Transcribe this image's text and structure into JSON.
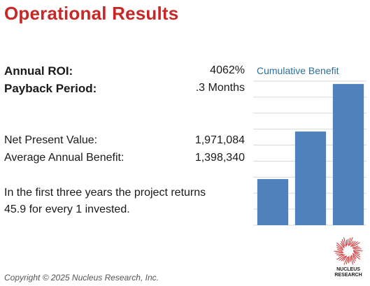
{
  "title": "Operational Results",
  "metrics": {
    "roi_label": "Annual ROI:",
    "roi_value": "4062%",
    "payback_label": "Payback Period:",
    "payback_value": ".3 Months",
    "npv_label": "Net Present Value:",
    "npv_value": "1,971,084",
    "avg_label": "Average Annual Benefit:",
    "avg_value": "1,398,340"
  },
  "summary": {
    "line1": "In the first three years the project returns",
    "line2": "45.9 for every 1 invested."
  },
  "copyright": "Copyright © 2025 Nucleus Research, Inc.",
  "logo": {
    "line1": "NUCLEUS",
    "line2": "RESEARCH",
    "color": "#d32f2f"
  },
  "chart_data": {
    "type": "bar",
    "title": "Cumulative Benefit",
    "categories": [
      "",
      "",
      ""
    ],
    "values": [
      0.32,
      0.65,
      0.98
    ],
    "ylim": [
      0,
      1
    ],
    "grid": true,
    "bar_color": "#4f81bd"
  }
}
